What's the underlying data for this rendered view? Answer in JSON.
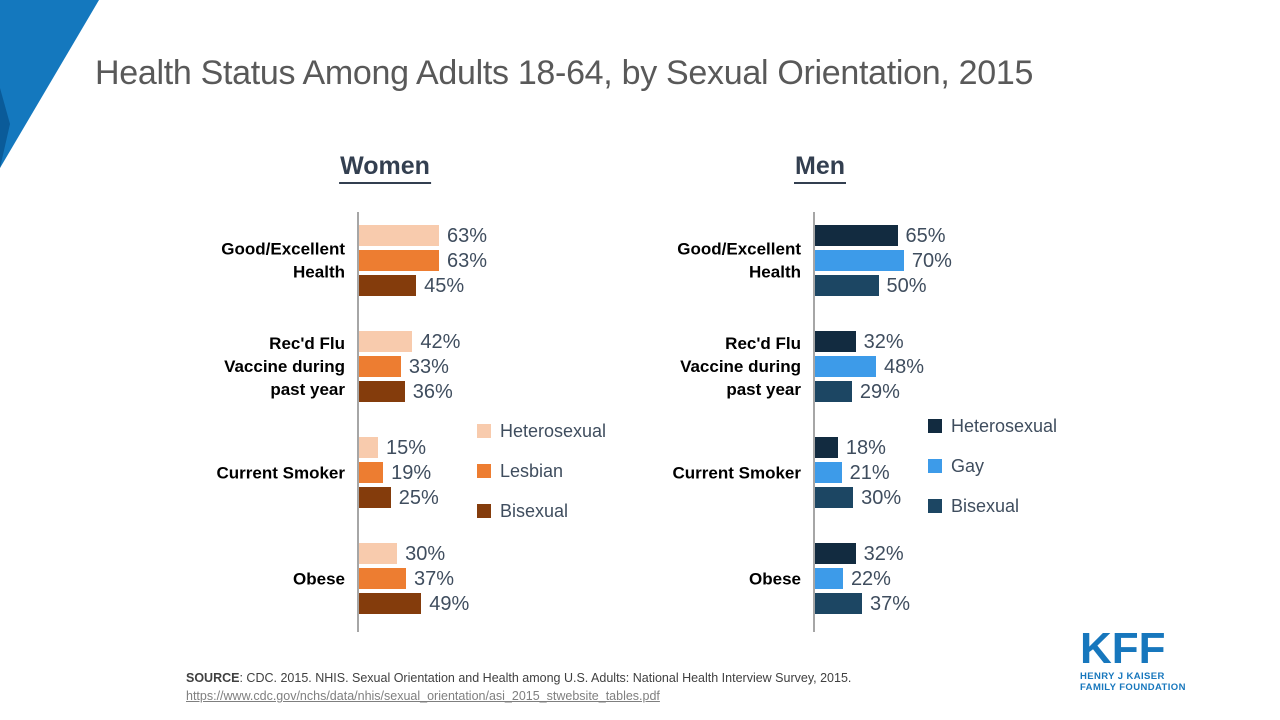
{
  "title": "Health Status Among Adults 18-64, by Sexual Orientation, 2015",
  "source": {
    "label": "SOURCE",
    "text": ":  CDC. 2015. NHIS. Sexual Orientation and Health among U.S. Adults: National Health Interview Survey, 2015.",
    "link": "https://www.cdc.gov/nchs/data/nhis/sexual_orientation/asi_2015_stwebsite_tables.pdf"
  },
  "logo": {
    "name": "KFF",
    "line1": "HENRY J KAISER",
    "line2": "FAMILY FOUNDATION",
    "color": "#1777BD"
  },
  "accent_colors": {
    "corner_triangle": "#1478BE",
    "corner_triangle_dark": "#0A5B99",
    "heading_text": "#333F50",
    "value_text": "#3F4D5E",
    "axis_line": "#A6A6A6"
  },
  "chart_data": [
    {
      "type": "bar",
      "orientation": "horizontal",
      "title": "Women",
      "categories": [
        "Good/Excellent\nHealth",
        "Rec'd Flu\nVaccine during\npast year",
        "Current Smoker",
        "Obese"
      ],
      "series": [
        {
          "name": "Heterosexual",
          "color": "#F8CBAD",
          "values": [
            63,
            42,
            15,
            30
          ]
        },
        {
          "name": "Lesbian",
          "color": "#ED7D31",
          "values": [
            63,
            33,
            19,
            37
          ]
        },
        {
          "name": "Bisexual",
          "color": "#843C0C",
          "values": [
            45,
            36,
            25,
            49
          ]
        }
      ],
      "value_suffix": "%",
      "xlim": [
        0,
        100
      ],
      "grid": false,
      "legend_position": "right-middle"
    },
    {
      "type": "bar",
      "orientation": "horizontal",
      "title": "Men",
      "categories": [
        "Good/Excellent\nHealth",
        "Rec'd Flu\nVaccine during\npast year",
        "Current Smoker",
        "Obese"
      ],
      "series": [
        {
          "name": "Heterosexual",
          "color": "#122B40",
          "values": [
            65,
            32,
            18,
            32
          ]
        },
        {
          "name": "Gay",
          "color": "#3D9BE9",
          "values": [
            70,
            48,
            21,
            22
          ]
        },
        {
          "name": "Bisexual",
          "color": "#1C4663",
          "values": [
            50,
            29,
            30,
            37
          ]
        }
      ],
      "value_suffix": "%",
      "xlim": [
        0,
        100
      ],
      "grid": false,
      "legend_position": "right-middle"
    }
  ]
}
